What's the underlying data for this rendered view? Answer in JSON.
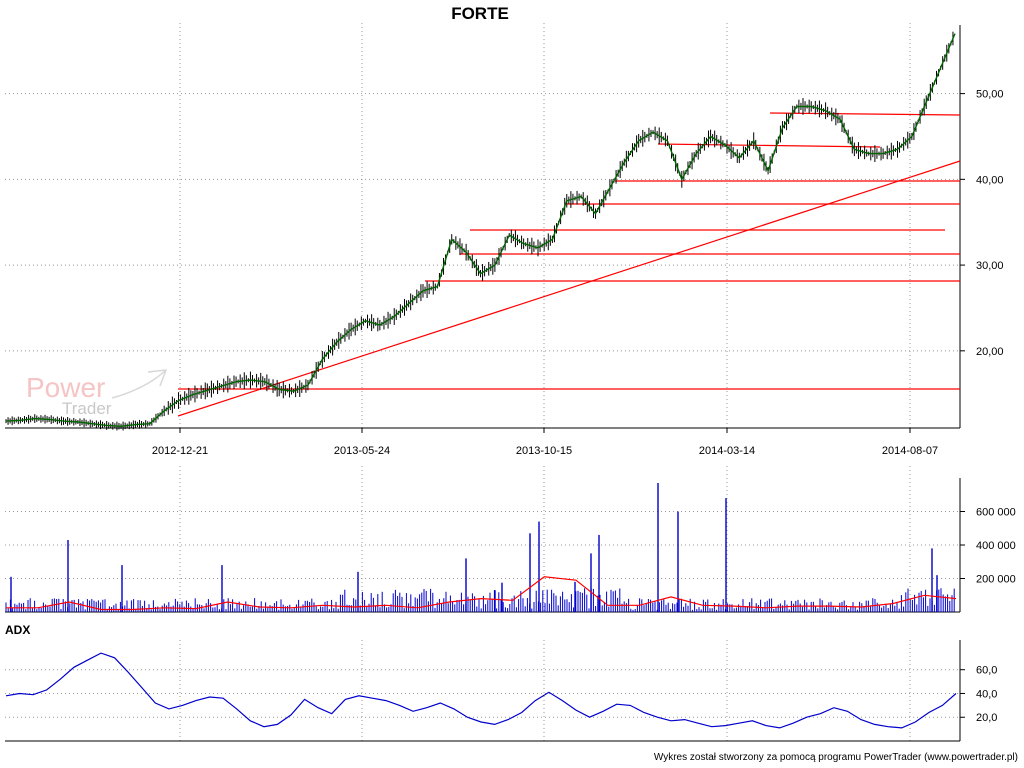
{
  "title": "FORTE",
  "footer": "Wykres został stworzony za pomocą programu PowerTrader (www.powertrader.pl)",
  "watermark": {
    "line1": "Power",
    "line2": "Trader"
  },
  "colors": {
    "price": "#006400",
    "trendlines": "#ff0000",
    "volume_bars": "#0000cc",
    "volume_avg": "#ff0000",
    "adx": "#0000cc",
    "grid": "#999999"
  },
  "chart_data": [
    {
      "type": "line",
      "panel": "price",
      "title": "FORTE",
      "x_tick_labels": [
        "2012-12-21",
        "2013-05-24",
        "2013-10-15",
        "2014-03-14",
        "2014-08-07"
      ],
      "y_tick_labels": [
        "20,00",
        "30,00",
        "40,00",
        "50,00"
      ],
      "ylim": [
        11,
        58
      ],
      "grid": true,
      "series": [
        {
          "values": [
            11.8,
            11.9,
            12.1,
            12.0,
            11.8,
            11.7,
            11.5,
            11.3,
            11.2,
            11.4,
            11.5,
            13.0,
            14.2,
            14.9,
            15.4,
            15.9,
            16.4,
            16.6,
            16.4,
            15.5,
            15.3,
            16.0,
            19.0,
            21.0,
            22.5,
            23.5,
            23.0,
            24.0,
            25.5,
            27.0,
            27.5,
            33.0,
            31.5,
            29.0,
            30.0,
            33.5,
            32.5,
            32.0,
            33.0,
            37.5,
            38.0,
            36.0,
            39.0,
            42.0,
            44.5,
            45.5,
            44.5,
            40.0,
            43.0,
            45.0,
            44.0,
            42.5,
            44.5,
            41.0,
            46.0,
            48.5,
            48.5,
            48.0,
            47.0,
            43.5,
            43.0,
            43.0,
            43.5,
            45.0,
            49.0,
            53.0,
            57.0
          ]
        }
      ]
    },
    {
      "type": "bar",
      "panel": "volume",
      "y_tick_labels": [
        "200 000",
        "400 000",
        "600 000"
      ],
      "ylim": [
        0,
        800000
      ],
      "volume_spikes": [
        210000,
        430000,
        280000,
        240000,
        130000,
        175000,
        540000,
        460000,
        600000,
        770000,
        680000,
        320000,
        470000,
        350000,
        380000,
        220000,
        280000,
        180000
      ],
      "avg_series": [
        25000,
        25000,
        60000,
        15000,
        15000,
        25000,
        20000,
        60000,
        30000,
        25000,
        40000,
        30000,
        40000,
        25000,
        60000,
        80000,
        70000,
        210000,
        190000,
        40000,
        40000,
        90000,
        40000,
        35000,
        25000,
        35000,
        35000,
        30000,
        50000,
        100000,
        80000
      ]
    },
    {
      "type": "line",
      "panel": "adx",
      "label": "ADX",
      "y_tick_labels": [
        "20,0",
        "40,0",
        "60,0"
      ],
      "ylim": [
        0,
        85
      ],
      "values": [
        38,
        40,
        39,
        43,
        52,
        62,
        68,
        74,
        70,
        58,
        45,
        32,
        27,
        30,
        34,
        37,
        36,
        27,
        17,
        12,
        14,
        22,
        35,
        28,
        23,
        35,
        38,
        36,
        34,
        30,
        25,
        28,
        32,
        27,
        20,
        16,
        14,
        18,
        24,
        34,
        41,
        34,
        26,
        20,
        25,
        31,
        30,
        24,
        20,
        17,
        18,
        15,
        12,
        13,
        15,
        17,
        13,
        11,
        15,
        20,
        23,
        28,
        25,
        18,
        14,
        12,
        11,
        16,
        24,
        30,
        40
      ]
    }
  ]
}
